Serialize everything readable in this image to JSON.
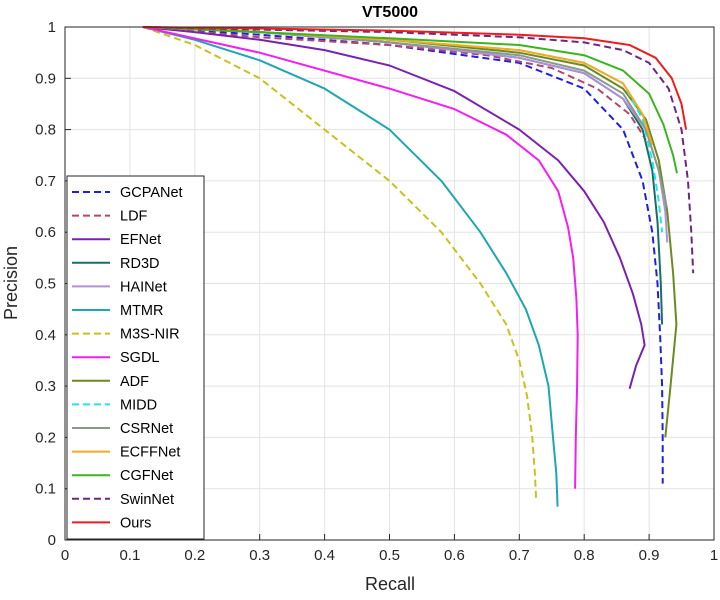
{
  "chart_data": {
    "type": "line",
    "title": "VT5000",
    "xlabel": "Recall",
    "ylabel": "Precision",
    "xlim": [
      0,
      1
    ],
    "ylim": [
      0,
      1
    ],
    "xticks": [
      "0",
      "0.1",
      "0.2",
      "0.3",
      "0.4",
      "0.5",
      "0.6",
      "0.7",
      "0.8",
      "0.9",
      "1"
    ],
    "yticks": [
      "0",
      "0.1",
      "0.2",
      "0.3",
      "0.4",
      "0.5",
      "0.6",
      "0.7",
      "0.8",
      "0.9",
      "1"
    ],
    "grid": true,
    "legend_position": "bottom-left",
    "series": [
      {
        "name": "GCPANet",
        "color": "#1f1fe0",
        "dash": "dashed",
        "points": [
          [
            0.12,
            1.0
          ],
          [
            0.3,
            0.985
          ],
          [
            0.5,
            0.965
          ],
          [
            0.7,
            0.93
          ],
          [
            0.8,
            0.88
          ],
          [
            0.86,
            0.8
          ],
          [
            0.89,
            0.7
          ],
          [
            0.905,
            0.6
          ],
          [
            0.913,
            0.5
          ],
          [
            0.917,
            0.4
          ],
          [
            0.92,
            0.3
          ],
          [
            0.921,
            0.2
          ],
          [
            0.921,
            0.11
          ]
        ]
      },
      {
        "name": "LDF",
        "color": "#b5476c",
        "dash": "dashed",
        "points": [
          [
            0.12,
            1.0
          ],
          [
            0.3,
            0.98
          ],
          [
            0.5,
            0.965
          ],
          [
            0.65,
            0.945
          ],
          [
            0.75,
            0.92
          ],
          [
            0.82,
            0.88
          ],
          [
            0.87,
            0.83
          ],
          [
            0.895,
            0.78
          ]
        ]
      },
      {
        "name": "EFNet",
        "color": "#7a22b0",
        "dash": "solid",
        "points": [
          [
            0.12,
            1.0
          ],
          [
            0.2,
            0.99
          ],
          [
            0.3,
            0.975
          ],
          [
            0.4,
            0.955
          ],
          [
            0.5,
            0.925
          ],
          [
            0.6,
            0.875
          ],
          [
            0.7,
            0.8
          ],
          [
            0.76,
            0.74
          ],
          [
            0.8,
            0.68
          ],
          [
            0.83,
            0.62
          ],
          [
            0.855,
            0.55
          ],
          [
            0.875,
            0.48
          ],
          [
            0.888,
            0.42
          ],
          [
            0.893,
            0.38
          ],
          [
            0.88,
            0.34
          ],
          [
            0.87,
            0.295
          ]
        ]
      },
      {
        "name": "RD3D",
        "color": "#1a6e66",
        "dash": "solid",
        "points": [
          [
            0.12,
            1.0
          ],
          [
            0.3,
            0.99
          ],
          [
            0.5,
            0.97
          ],
          [
            0.7,
            0.94
          ],
          [
            0.8,
            0.91
          ],
          [
            0.86,
            0.86
          ],
          [
            0.89,
            0.8
          ],
          [
            0.905,
            0.72
          ],
          [
            0.913,
            0.62
          ],
          [
            0.918,
            0.5
          ],
          [
            0.92,
            0.42
          ]
        ]
      },
      {
        "name": "HAINet",
        "color": "#b08fe0",
        "dash": "solid",
        "points": [
          [
            0.12,
            1.0
          ],
          [
            0.3,
            0.99
          ],
          [
            0.5,
            0.97
          ],
          [
            0.7,
            0.94
          ],
          [
            0.8,
            0.91
          ],
          [
            0.86,
            0.86
          ],
          [
            0.895,
            0.8
          ],
          [
            0.915,
            0.72
          ],
          [
            0.925,
            0.64
          ],
          [
            0.928,
            0.58
          ]
        ]
      },
      {
        "name": "MTMR",
        "color": "#1fa5b3",
        "dash": "solid",
        "points": [
          [
            0.12,
            1.0
          ],
          [
            0.2,
            0.975
          ],
          [
            0.3,
            0.935
          ],
          [
            0.4,
            0.88
          ],
          [
            0.5,
            0.8
          ],
          [
            0.58,
            0.7
          ],
          [
            0.64,
            0.6
          ],
          [
            0.68,
            0.52
          ],
          [
            0.71,
            0.45
          ],
          [
            0.73,
            0.38
          ],
          [
            0.745,
            0.3
          ],
          [
            0.752,
            0.2
          ],
          [
            0.757,
            0.13
          ],
          [
            0.759,
            0.065
          ]
        ]
      },
      {
        "name": "M3S-NIR",
        "color": "#c9c21a",
        "dash": "dashed",
        "points": [
          [
            0.12,
            1.0
          ],
          [
            0.2,
            0.965
          ],
          [
            0.3,
            0.9
          ],
          [
            0.4,
            0.8
          ],
          [
            0.5,
            0.7
          ],
          [
            0.58,
            0.6
          ],
          [
            0.64,
            0.5
          ],
          [
            0.68,
            0.42
          ],
          [
            0.7,
            0.35
          ],
          [
            0.712,
            0.28
          ],
          [
            0.72,
            0.2
          ],
          [
            0.724,
            0.13
          ],
          [
            0.726,
            0.075
          ]
        ]
      },
      {
        "name": "SGDL",
        "color": "#f21ff2",
        "dash": "solid",
        "points": [
          [
            0.12,
            1.0
          ],
          [
            0.3,
            0.95
          ],
          [
            0.5,
            0.88
          ],
          [
            0.6,
            0.84
          ],
          [
            0.68,
            0.79
          ],
          [
            0.73,
            0.74
          ],
          [
            0.76,
            0.68
          ],
          [
            0.775,
            0.61
          ],
          [
            0.783,
            0.55
          ],
          [
            0.788,
            0.47
          ],
          [
            0.79,
            0.4
          ],
          [
            0.789,
            0.3
          ],
          [
            0.787,
            0.2
          ],
          [
            0.786,
            0.1
          ]
        ]
      },
      {
        "name": "ADF",
        "color": "#6b8a1f",
        "dash": "solid",
        "points": [
          [
            0.12,
            1.0
          ],
          [
            0.3,
            0.99
          ],
          [
            0.5,
            0.975
          ],
          [
            0.7,
            0.95
          ],
          [
            0.8,
            0.925
          ],
          [
            0.86,
            0.88
          ],
          [
            0.895,
            0.82
          ],
          [
            0.915,
            0.74
          ],
          [
            0.928,
            0.64
          ],
          [
            0.937,
            0.52
          ],
          [
            0.942,
            0.42
          ],
          [
            0.933,
            0.3
          ],
          [
            0.925,
            0.2
          ]
        ]
      },
      {
        "name": "MIDD",
        "color": "#1fe5f0",
        "dash": "dashed",
        "points": [
          [
            0.12,
            1.0
          ],
          [
            0.3,
            0.99
          ],
          [
            0.5,
            0.975
          ],
          [
            0.7,
            0.955
          ],
          [
            0.8,
            0.93
          ],
          [
            0.86,
            0.89
          ],
          [
            0.89,
            0.82
          ],
          [
            0.905,
            0.74
          ],
          [
            0.915,
            0.66
          ],
          [
            0.92,
            0.6
          ]
        ]
      },
      {
        "name": "CSRNet",
        "color": "#8a9a8a",
        "dash": "solid",
        "points": [
          [
            0.12,
            1.0
          ],
          [
            0.3,
            0.99
          ],
          [
            0.5,
            0.97
          ],
          [
            0.7,
            0.945
          ],
          [
            0.8,
            0.915
          ],
          [
            0.86,
            0.87
          ],
          [
            0.895,
            0.8
          ],
          [
            0.915,
            0.72
          ],
          [
            0.927,
            0.65
          ]
        ]
      },
      {
        "name": "ECFFNet",
        "color": "#f5a820",
        "dash": "solid",
        "points": [
          [
            0.12,
            1.0
          ],
          [
            0.3,
            0.99
          ],
          [
            0.5,
            0.975
          ],
          [
            0.7,
            0.955
          ],
          [
            0.8,
            0.93
          ],
          [
            0.86,
            0.89
          ],
          [
            0.89,
            0.83
          ],
          [
            0.905,
            0.77
          ]
        ]
      },
      {
        "name": "CGFNet",
        "color": "#3ab51f",
        "dash": "solid",
        "points": [
          [
            0.12,
            1.0
          ],
          [
            0.3,
            0.99
          ],
          [
            0.5,
            0.978
          ],
          [
            0.7,
            0.965
          ],
          [
            0.8,
            0.945
          ],
          [
            0.86,
            0.915
          ],
          [
            0.9,
            0.87
          ],
          [
            0.922,
            0.81
          ],
          [
            0.937,
            0.75
          ],
          [
            0.943,
            0.715
          ]
        ]
      },
      {
        "name": "SwinNet",
        "color": "#6e2680",
        "dash": "dashed",
        "points": [
          [
            0.12,
            1.0
          ],
          [
            0.3,
            0.995
          ],
          [
            0.5,
            0.99
          ],
          [
            0.7,
            0.98
          ],
          [
            0.8,
            0.97
          ],
          [
            0.86,
            0.955
          ],
          [
            0.9,
            0.93
          ],
          [
            0.93,
            0.88
          ],
          [
            0.95,
            0.8
          ],
          [
            0.96,
            0.7
          ],
          [
            0.965,
            0.6
          ],
          [
            0.968,
            0.52
          ]
        ]
      },
      {
        "name": "Ours",
        "color": "#ee1c1c",
        "dash": "solid",
        "points": [
          [
            0.12,
            1.0
          ],
          [
            0.3,
            0.997
          ],
          [
            0.5,
            0.993
          ],
          [
            0.7,
            0.985
          ],
          [
            0.8,
            0.978
          ],
          [
            0.87,
            0.965
          ],
          [
            0.91,
            0.94
          ],
          [
            0.935,
            0.9
          ],
          [
            0.95,
            0.85
          ],
          [
            0.957,
            0.8
          ]
        ]
      }
    ]
  }
}
